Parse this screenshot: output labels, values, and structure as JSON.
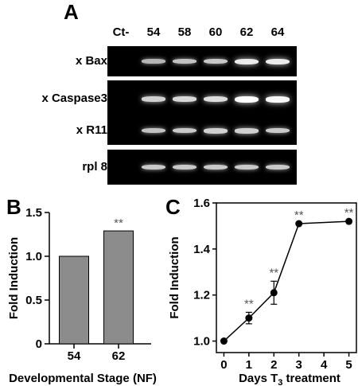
{
  "panel_a": {
    "letter": "A",
    "lanes": [
      "Ct-",
      "54",
      "58",
      "60",
      "62",
      "64"
    ],
    "genes": [
      {
        "label": "x Bax",
        "bands": [
          0.0,
          0.45,
          0.55,
          0.6,
          0.85,
          0.85
        ]
      },
      {
        "label": "x Caspase3",
        "bands": [
          0.0,
          0.65,
          0.7,
          0.75,
          1.0,
          0.95
        ]
      },
      {
        "label": "x R11",
        "bands": [
          0.0,
          0.55,
          0.6,
          0.65,
          0.65,
          0.6
        ]
      },
      {
        "label": "rpl 8",
        "bands": [
          0.0,
          0.6,
          0.6,
          0.6,
          0.6,
          0.6
        ]
      }
    ]
  },
  "chart_data": [
    {
      "panel": "B",
      "type": "bar",
      "categories": [
        "54",
        "62"
      ],
      "values": [
        1.0,
        1.29
      ],
      "annotations": [
        "",
        "**"
      ],
      "xlabel": "Developmental Stage (NF)",
      "ylabel": "Fold Induction",
      "ylim": [
        0,
        1.5
      ],
      "yticks": [
        "0",
        "0.5",
        "1.0",
        "1.5"
      ],
      "bar_color": "#8c8c8c"
    },
    {
      "panel": "C",
      "type": "line",
      "x": [
        0,
        1,
        2,
        3,
        5
      ],
      "y": [
        1.0,
        1.1,
        1.21,
        1.51,
        1.52
      ],
      "err": [
        0,
        0.025,
        0.05,
        0,
        0
      ],
      "annotations": [
        "",
        "**",
        "**",
        "**",
        "**"
      ],
      "xlabel_prefix": "Days T",
      "xlabel_sub": "3",
      "xlabel_suffix": " treatment",
      "ylabel": "Fold Induction",
      "xlim": [
        -0.3,
        5.3
      ],
      "ylim": [
        0.95,
        1.6
      ],
      "xticks": [
        "0",
        "1",
        "2",
        "3",
        "4",
        "5"
      ],
      "yticks": [
        "1.0",
        "1.2",
        "1.4",
        "1.6"
      ]
    }
  ]
}
